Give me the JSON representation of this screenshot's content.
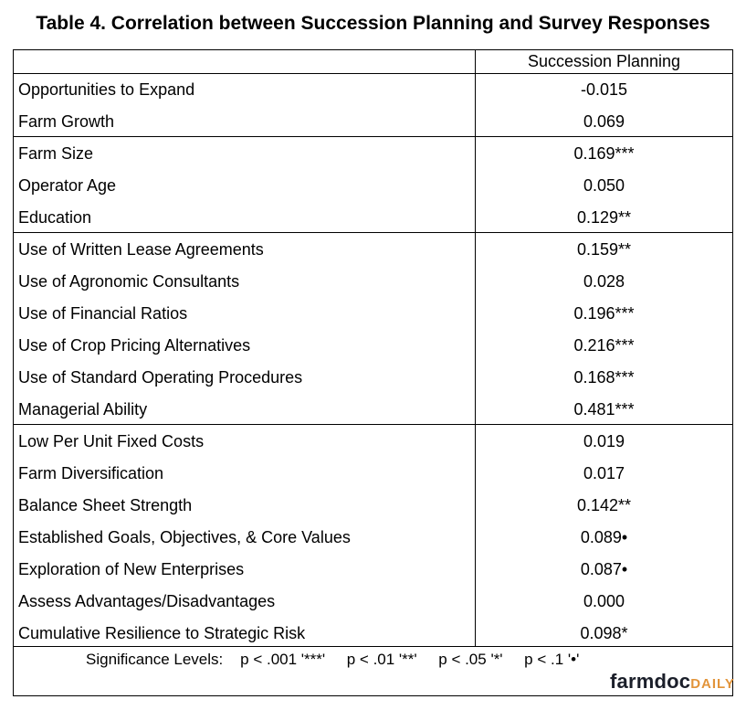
{
  "title": "Table 4. Correlation between Succession Planning and Survey Responses",
  "column_header": "Succession Planning",
  "rows": [
    {
      "label": "Opportunities to Expand",
      "value": "-0.015"
    },
    {
      "label": "Farm Growth",
      "value": "0.069"
    },
    {
      "label": "Farm Size",
      "value": "0.169***"
    },
    {
      "label": "Operator Age",
      "value": "0.050"
    },
    {
      "label": "Education",
      "value": "0.129**"
    },
    {
      "label": "Use of Written Lease Agreements",
      "value": "0.159**"
    },
    {
      "label": "Use of Agronomic Consultants",
      "value": "0.028"
    },
    {
      "label": "Use of Financial Ratios",
      "value": "0.196***"
    },
    {
      "label": "Use of Crop Pricing Alternatives",
      "value": "0.216***"
    },
    {
      "label": "Use of Standard Operating Procedures",
      "value": "0.168***"
    },
    {
      "label": "Managerial Ability",
      "value": "0.481***"
    },
    {
      "label": "Low Per Unit Fixed Costs",
      "value": "0.019"
    },
    {
      "label": "Farm Diversification",
      "value": "0.017"
    },
    {
      "label": "Balance Sheet Strength",
      "value": "0.142**"
    },
    {
      "label": "Established Goals, Objectives, & Core Values",
      "value": "0.089•"
    },
    {
      "label": "Exploration of New Enterprises",
      "value": "0.087•"
    },
    {
      "label": "Assess Advantages/Disadvantages",
      "value": "0.000"
    },
    {
      "label": "Cumulative Resilience to Strategic Risk",
      "value": "0.098*"
    }
  ],
  "footer": "Significance Levels:    p < .001 '***'     p < .01 '**'     p < .05 '*'     p < .1 '•'",
  "logo": {
    "part1": "farmdoc",
    "part2": "DAILY",
    "color_dark": "#1b1f2a",
    "color_accent": "#e2943a"
  }
}
